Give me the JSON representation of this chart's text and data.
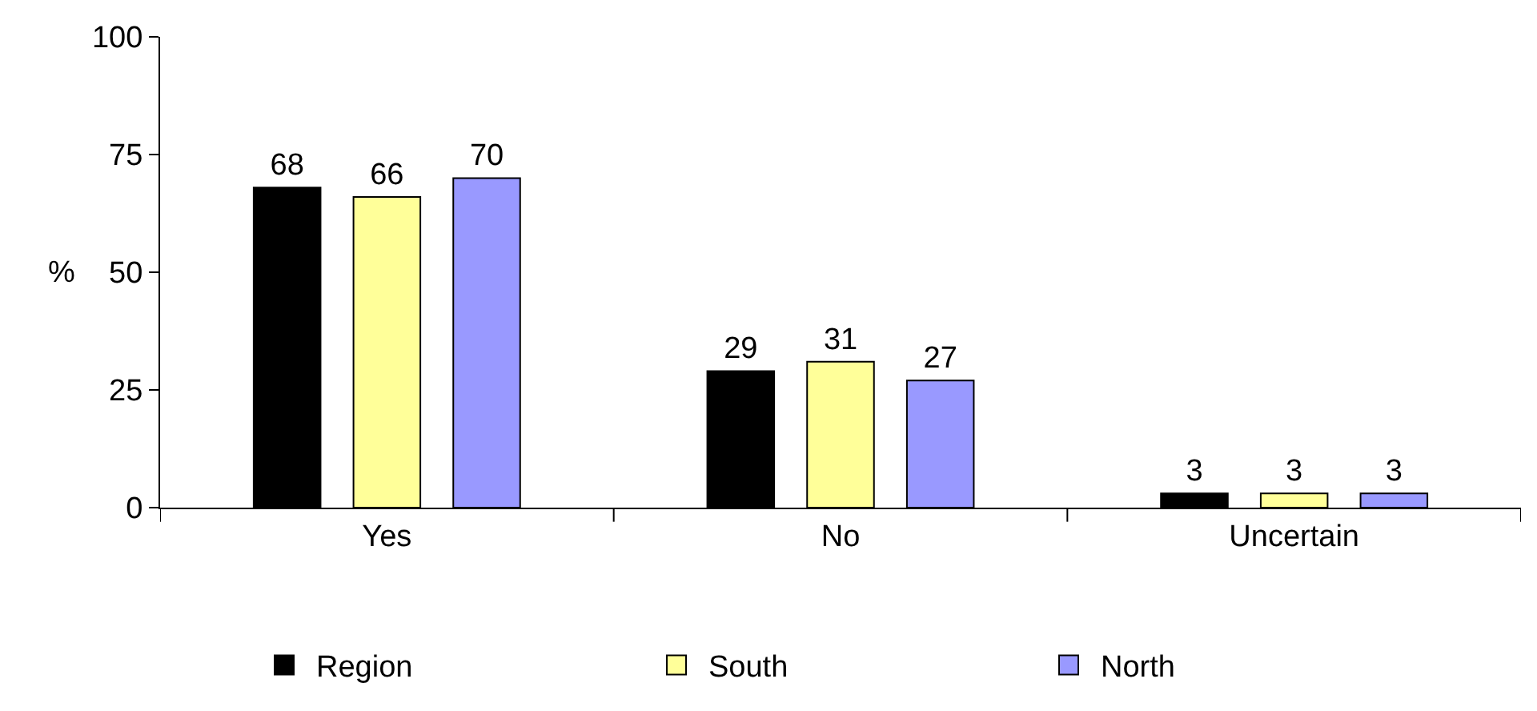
{
  "chart_data": {
    "type": "bar",
    "ylabel": "%",
    "categories": [
      "Yes",
      "No",
      "Uncertain"
    ],
    "series": [
      {
        "name": "Region",
        "color": "#000000",
        "values": [
          68,
          29,
          3
        ]
      },
      {
        "name": "South",
        "color": "#ffff99",
        "values": [
          66,
          31,
          3
        ]
      },
      {
        "name": "North",
        "color": "#9999ff",
        "values": [
          70,
          27,
          3
        ]
      }
    ],
    "ylim": [
      0,
      100
    ],
    "yticks": [
      0,
      25,
      50,
      75,
      100
    ],
    "grid": false,
    "legend": "bottom",
    "data_labels": true
  }
}
